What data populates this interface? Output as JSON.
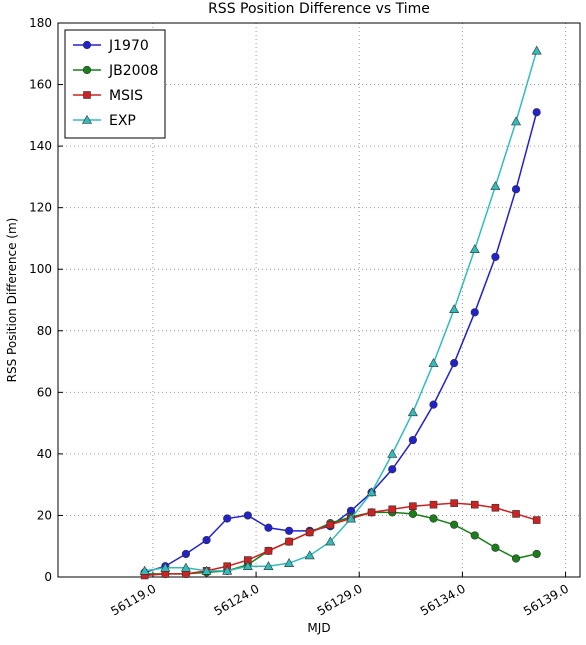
{
  "chart_data": {
    "type": "line",
    "title": "RSS Position Difference vs Time",
    "xlabel": "MJD",
    "ylabel": "RSS Position Difference (m)",
    "x": [
      56118.6,
      56119.6,
      56120.6,
      56121.6,
      56122.6,
      56123.6,
      56124.6,
      56125.6,
      56126.6,
      56127.6,
      56128.6,
      56129.6,
      56130.6,
      56131.6,
      56132.6,
      56133.6,
      56134.6,
      56135.6,
      56136.6,
      56137.6
    ],
    "series": [
      {
        "name": "J1970",
        "color": "#2222cc",
        "marker": "circle",
        "values": [
          1.5,
          3.5,
          7.5,
          12,
          19,
          20,
          16,
          15,
          15,
          16.5,
          21.5,
          27.5,
          35,
          44.5,
          56,
          69.5,
          86,
          104,
          126,
          151
        ]
      },
      {
        "name": "JB2008",
        "color": "#1a7f1a",
        "marker": "circle",
        "values": [
          1,
          1,
          1,
          1.5,
          2,
          4,
          8.5,
          11.5,
          14.5,
          17.5,
          19.5,
          21,
          21,
          20.5,
          19,
          17,
          13.5,
          9.5,
          6,
          7.5
        ]
      },
      {
        "name": "MSIS",
        "color": "#cc2222",
        "marker": "square",
        "values": [
          0.5,
          1,
          1,
          2,
          3.5,
          5.5,
          8.5,
          11.5,
          14.5,
          17,
          19,
          21,
          22,
          23,
          23.5,
          24,
          23.5,
          22.5,
          20.5,
          18.5
        ]
      },
      {
        "name": "EXP",
        "color": "#33bbbb",
        "marker": "triangle",
        "values": [
          2,
          3,
          3,
          2,
          2,
          3.5,
          3.5,
          4.5,
          7,
          11.5,
          19,
          27.5,
          40,
          53.5,
          69.5,
          87,
          106.5,
          127,
          148,
          171
        ]
      }
    ],
    "xlim": [
      56114.4,
      56139.7
    ],
    "xticks": [
      {
        "value": 56119,
        "label": "56119.0"
      },
      {
        "value": 56124,
        "label": "56124.0"
      },
      {
        "value": 56129,
        "label": "56129.0"
      },
      {
        "value": 56134,
        "label": "56134.0"
      },
      {
        "value": 56139,
        "label": "56139.0"
      }
    ],
    "ylim": [
      0,
      180
    ],
    "yticks": [
      0,
      20,
      40,
      60,
      80,
      100,
      120,
      140,
      160,
      180
    ],
    "grid": true,
    "legend": "upper left"
  }
}
